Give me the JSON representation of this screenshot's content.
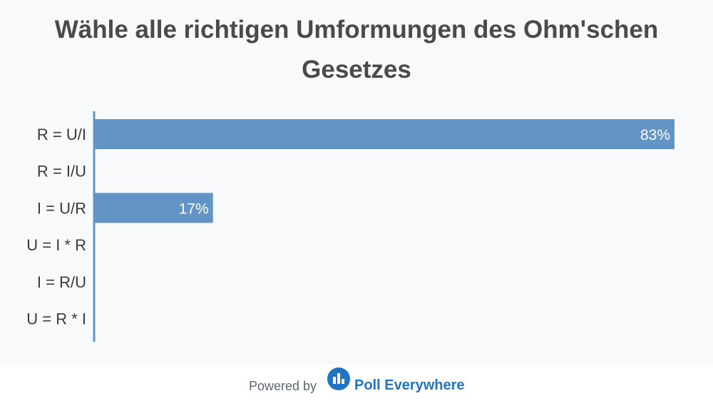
{
  "chart_data": {
    "type": "bar",
    "orientation": "horizontal",
    "title": "Wähle alle richtigen Umformungen des Ohm'schen Gesetzes",
    "categories": [
      "R = U/I",
      "R = I/U",
      "I = U/R",
      "U = I * R",
      "I = R/U",
      "U = R * I"
    ],
    "values": [
      83,
      0,
      17,
      0,
      0,
      0
    ],
    "value_labels": [
      "83%",
      "",
      "17%",
      "",
      "",
      ""
    ],
    "xlim": [
      0,
      100
    ],
    "unit": "%",
    "grid": false,
    "bar_color": "#6295c6",
    "axis_color": "#6295c6"
  },
  "footer": {
    "powered_by": "Powered by",
    "brand": "Poll Everywhere",
    "brand_color": "#1f75c1",
    "logo_icon": "poll-everywhere-logo-icon"
  }
}
